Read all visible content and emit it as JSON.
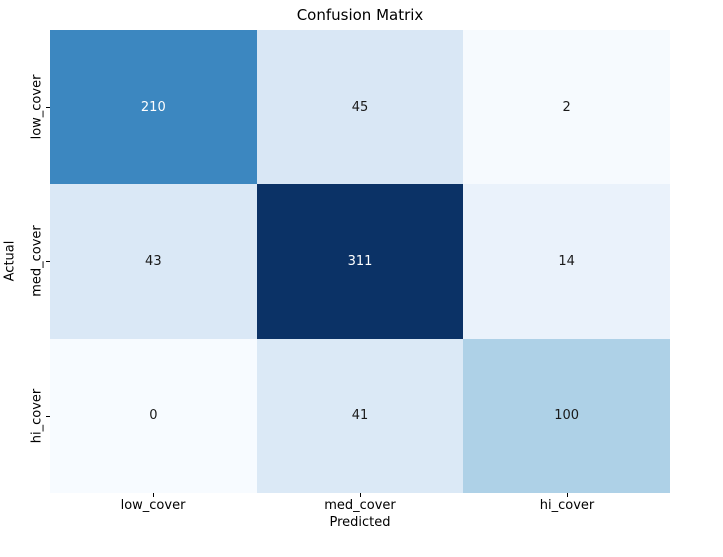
{
  "chart_data": {
    "type": "heatmap",
    "title": "Confusion Matrix",
    "xlabel": "Predicted",
    "ylabel": "Actual",
    "x_categories": [
      "low_cover",
      "med_cover",
      "hi_cover"
    ],
    "y_categories": [
      "low_cover",
      "med_cover",
      "hi_cover"
    ],
    "rows": [
      [
        210,
        45,
        2
      ],
      [
        43,
        311,
        14
      ],
      [
        0,
        41,
        100
      ]
    ],
    "colormap": "Blues",
    "vmin": 0,
    "vmax": 311,
    "colorbar": "none",
    "grid": "off",
    "cells": [
      {
        "value": "210",
        "bg": "#3c87c0",
        "fg": "#ffffff"
      },
      {
        "value": "45",
        "bg": "#d9e7f5",
        "fg": "#1a1a1a"
      },
      {
        "value": "2",
        "bg": "#f6fafe",
        "fg": "#1a1a1a"
      },
      {
        "value": "43",
        "bg": "#dae8f6",
        "fg": "#1a1a1a"
      },
      {
        "value": "311",
        "bg": "#0b3266",
        "fg": "#ffffff"
      },
      {
        "value": "14",
        "bg": "#eaf2fb",
        "fg": "#1a1a1a"
      },
      {
        "value": "0",
        "bg": "#f7fbff",
        "fg": "#1a1a1a"
      },
      {
        "value": "41",
        "bg": "#dbe9f6",
        "fg": "#1a1a1a"
      },
      {
        "value": "100",
        "bg": "#aed1e7",
        "fg": "#1a1a1a"
      }
    ]
  }
}
